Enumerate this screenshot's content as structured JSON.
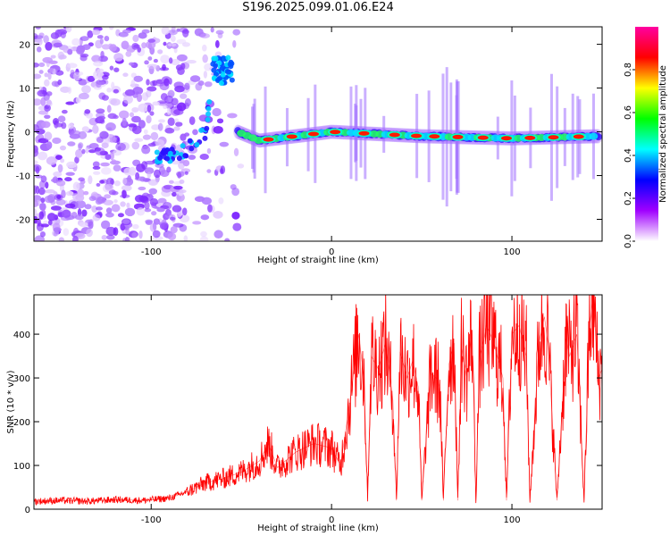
{
  "title": "S196.2025.099.01.06.E24",
  "chart_data": [
    {
      "type": "heatmap",
      "title": "S196.2025.099.01.06.E24",
      "xlabel": "Height of straight line (km)",
      "ylabel": "Frequency (Hz)",
      "xlim": [
        -165,
        150
      ],
      "ylim": [
        -25,
        24
      ],
      "xticks": [
        "-100",
        "0",
        "100"
      ],
      "yticks": [
        "20",
        "10",
        "0",
        "-10",
        "-20"
      ],
      "colorbar": {
        "label": "Normalized spectral amplitude",
        "range": [
          0,
          1
        ],
        "ticks": [
          "0.0",
          "0.2",
          "0.4",
          "0.6",
          "0.8"
        ],
        "colors": [
          "#ffffff",
          "#a000ff",
          "#0000ff",
          "#00ffff",
          "#00ff00",
          "#ffff00",
          "#ff0000",
          "#ff00a0"
        ]
      },
      "signal_trace": [
        {
          "x": -95,
          "f": -6
        },
        {
          "x": -80,
          "f": -4
        },
        {
          "x": -70,
          "f": 0
        },
        {
          "x": -65,
          "f": 15
        },
        {
          "x": -57,
          "f": 13
        },
        {
          "x": -52,
          "f": 0
        },
        {
          "x": -40,
          "f": -2
        },
        {
          "x": -20,
          "f": -1
        },
        {
          "x": 0,
          "f": 0
        },
        {
          "x": 50,
          "f": -1
        },
        {
          "x": 100,
          "f": -1.5
        },
        {
          "x": 148,
          "f": -1
        }
      ],
      "hot_spots": [
        -35,
        -22,
        -10,
        2,
        18,
        35,
        47,
        57,
        70,
        84,
        97,
        110,
        123,
        137
      ]
    },
    {
      "type": "line",
      "xlabel": "Height of straight line (km)",
      "ylabel": "SNR (10 * v/v)",
      "xlim": [
        -165,
        150
      ],
      "ylim": [
        0,
        490
      ],
      "xticks": [
        "-100",
        "0",
        "100"
      ],
      "yticks": [
        "0",
        "100",
        "200",
        "300",
        "400"
      ],
      "color": "#ff0000",
      "x": [
        -165,
        -150,
        -135,
        -120,
        -105,
        -90,
        -80,
        -70,
        -60,
        -50,
        -40,
        -35,
        -30,
        -20,
        -10,
        0,
        5,
        10,
        15,
        18,
        20,
        22,
        26,
        30,
        34,
        36,
        38,
        42,
        45,
        48,
        50,
        55,
        58,
        60,
        62,
        65,
        68,
        70,
        72,
        75,
        78,
        80,
        82,
        86,
        90,
        95,
        97,
        100,
        104,
        108,
        110,
        115,
        118,
        120,
        125,
        130,
        132,
        136,
        140,
        143,
        145,
        148,
        150
      ],
      "y": [
        18,
        20,
        18,
        22,
        20,
        25,
        40,
        60,
        70,
        85,
        110,
        150,
        95,
        130,
        150,
        140,
        100,
        240,
        400,
        300,
        25,
        350,
        320,
        380,
        250,
        20,
        360,
        300,
        340,
        280,
        20,
        310,
        300,
        280,
        20,
        330,
        380,
        20,
        370,
        300,
        410,
        20,
        340,
        420,
        380,
        300,
        20,
        400,
        420,
        350,
        20,
        380,
        440,
        380,
        20,
        390,
        350,
        400,
        20,
        420,
        480,
        300,
        320
      ]
    }
  ]
}
